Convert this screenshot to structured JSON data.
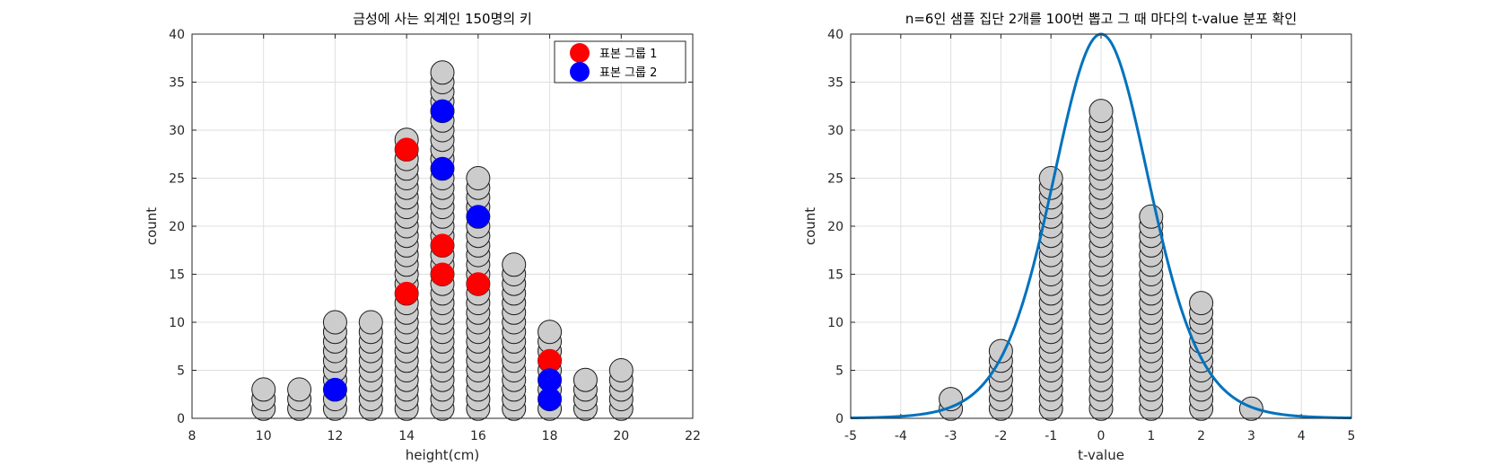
{
  "colors": {
    "gray": "#cccccc",
    "red": "#ff0000",
    "blue": "#0000ff",
    "curve": "#0072bd"
  },
  "chart_data": [
    {
      "type": "scatter",
      "title": "금성에 사는 외계인 150명의 키",
      "xlabel": "height(cm)",
      "ylabel": "count",
      "xlim": [
        8,
        22
      ],
      "ylim": [
        0,
        40
      ],
      "xticks": [
        8,
        10,
        12,
        14,
        16,
        18,
        20,
        22
      ],
      "yticks": [
        0,
        5,
        10,
        15,
        20,
        25,
        30,
        35,
        40
      ],
      "grid": true,
      "legend_position": "top-right",
      "stacks": [
        {
          "x": 10,
          "count": 3
        },
        {
          "x": 11,
          "count": 3
        },
        {
          "x": 12,
          "count": 10
        },
        {
          "x": 13,
          "count": 10
        },
        {
          "x": 14,
          "count": 29
        },
        {
          "x": 15,
          "count": 36
        },
        {
          "x": 16,
          "count": 25
        },
        {
          "x": 17,
          "count": 16
        },
        {
          "x": 18,
          "count": 9
        },
        {
          "x": 19,
          "count": 4
        },
        {
          "x": 20,
          "count": 5
        }
      ],
      "series": [
        {
          "name": "표본 그룹 1",
          "color": "red",
          "points": [
            [
              14,
              28
            ],
            [
              14,
              13
            ],
            [
              15,
              18
            ],
            [
              15,
              15
            ],
            [
              16,
              14
            ],
            [
              18,
              6
            ]
          ]
        },
        {
          "name": "표본 그룹 2",
          "color": "blue",
          "points": [
            [
              12,
              3
            ],
            [
              15,
              32
            ],
            [
              15,
              26
            ],
            [
              16,
              21
            ],
            [
              18,
              4
            ],
            [
              18,
              2
            ]
          ]
        }
      ]
    },
    {
      "type": "scatter",
      "title": "n=6인 샘플 집단 2개를 100번 뽑고 그 때 마다의 t-value 분포 확인",
      "xlabel": "t-value",
      "ylabel": "count",
      "xlim": [
        -5,
        5
      ],
      "ylim": [
        0,
        40
      ],
      "xticks": [
        -5,
        -4,
        -3,
        -2,
        -1,
        0,
        1,
        2,
        3,
        4,
        5
      ],
      "yticks": [
        0,
        5,
        10,
        15,
        20,
        25,
        30,
        35,
        40
      ],
      "grid": true,
      "stacks": [
        {
          "x": -3,
          "count": 2
        },
        {
          "x": -2,
          "count": 7
        },
        {
          "x": -1,
          "count": 25
        },
        {
          "x": 0,
          "count": 32
        },
        {
          "x": 1,
          "count": 21
        },
        {
          "x": 2,
          "count": 12
        },
        {
          "x": 3,
          "count": 1
        }
      ],
      "curve": {
        "type": "t-distribution",
        "df": 10,
        "peak": 40
      }
    }
  ]
}
